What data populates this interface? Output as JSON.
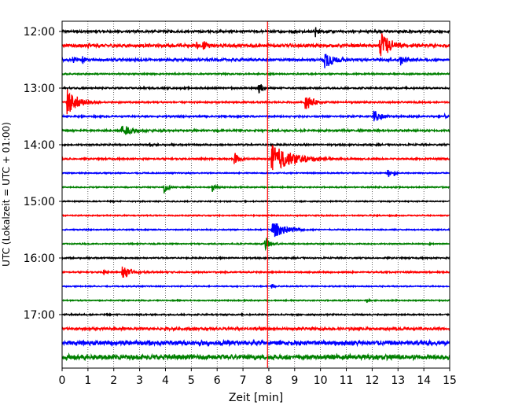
{
  "chart_data": {
    "type": "line",
    "subtype": "seismogram-helicorder",
    "xlabel": "Zeit  [min]",
    "ylabel": "UTC (Lokalzeit = UTC + 01:00)",
    "xlim": [
      0,
      15
    ],
    "x_ticks": [
      "0",
      "1",
      "2",
      "3",
      "4",
      "5",
      "6",
      "7",
      "8",
      "9",
      "10",
      "11",
      "12",
      "13",
      "14",
      "15"
    ],
    "y_tick_labels": [
      "12:00",
      "13:00",
      "14:00",
      "15:00",
      "16:00",
      "17:00"
    ],
    "y_tick_rows": [
      0,
      4,
      8,
      12,
      16,
      20
    ],
    "row_minutes": 15,
    "row_count": 24,
    "trace_colors": [
      "#000000",
      "#ff0000",
      "#0000ff",
      "#008000"
    ],
    "vertical_grid": "dotted",
    "marker_line": {
      "x": 7.95,
      "color": "#ff0000"
    },
    "rows": [
      {
        "start": "12:00",
        "color": "#000000",
        "noise": 0.2,
        "events": [
          [
            9.8,
            1.3,
            0.1
          ]
        ]
      },
      {
        "start": "12:15",
        "color": "#ff0000",
        "noise": 0.28,
        "events": [
          [
            1.0,
            1.0,
            0.06
          ],
          [
            5.2,
            1.0,
            0.08
          ],
          [
            5.45,
            1.6,
            0.14
          ],
          [
            12.3,
            3.0,
            0.35
          ],
          [
            12.55,
            1.2,
            0.25
          ]
        ]
      },
      {
        "start": "12:30",
        "color": "#0000ff",
        "noise": 0.22,
        "events": [
          [
            0.4,
            0.9,
            0.18
          ],
          [
            0.8,
            1.1,
            0.08
          ],
          [
            10.15,
            2.2,
            0.35
          ],
          [
            13.1,
            1.4,
            0.2
          ]
        ]
      },
      {
        "start": "12:45",
        "color": "#008000",
        "noise": 0.12,
        "events": []
      },
      {
        "start": "13:00",
        "color": "#000000",
        "noise": 0.14,
        "events": [
          [
            7.6,
            1.6,
            0.15
          ]
        ]
      },
      {
        "start": "13:15",
        "color": "#ff0000",
        "noise": 0.14,
        "events": [
          [
            0.18,
            3.0,
            0.4
          ],
          [
            9.4,
            2.2,
            0.25
          ]
        ]
      },
      {
        "start": "13:30",
        "color": "#0000ff",
        "noise": 0.14,
        "events": [
          [
            12.05,
            1.6,
            0.25
          ],
          [
            14.8,
            0.6,
            0.06
          ]
        ]
      },
      {
        "start": "13:45",
        "color": "#008000",
        "noise": 0.16,
        "events": [
          [
            2.3,
            1.6,
            0.4
          ],
          [
            3.9,
            0.6,
            0.06
          ]
        ]
      },
      {
        "start": "14:00",
        "color": "#000000",
        "noise": 0.14,
        "events": [
          [
            3.4,
            0.7,
            0.06
          ]
        ]
      },
      {
        "start": "14:15",
        "color": "#ff0000",
        "noise": 0.14,
        "events": [
          [
            6.65,
            1.5,
            0.18
          ],
          [
            8.1,
            3.2,
            0.8
          ]
        ]
      },
      {
        "start": "14:30",
        "color": "#0000ff",
        "noise": 0.1,
        "events": [
          [
            12.6,
            1.2,
            0.08
          ],
          [
            12.85,
            1.0,
            0.06
          ]
        ]
      },
      {
        "start": "14:45",
        "color": "#008000",
        "noise": 0.1,
        "events": [
          [
            3.95,
            1.4,
            0.15
          ],
          [
            5.8,
            1.2,
            0.12
          ]
        ]
      },
      {
        "start": "15:00",
        "color": "#000000",
        "noise": 0.1,
        "events": []
      },
      {
        "start": "15:15",
        "color": "#ff0000",
        "noise": 0.1,
        "events": []
      },
      {
        "start": "15:30",
        "color": "#0000ff",
        "noise": 0.1,
        "events": [
          [
            8.1,
            2.0,
            0.5
          ]
        ]
      },
      {
        "start": "15:45",
        "color": "#008000",
        "noise": 0.1,
        "events": [
          [
            7.85,
            1.6,
            0.2
          ],
          [
            14.2,
            0.5,
            0.06
          ]
        ]
      },
      {
        "start": "16:00",
        "color": "#000000",
        "noise": 0.12,
        "events": []
      },
      {
        "start": "16:15",
        "color": "#ff0000",
        "noise": 0.12,
        "events": [
          [
            1.6,
            0.9,
            0.1
          ],
          [
            2.3,
            1.3,
            0.35
          ]
        ]
      },
      {
        "start": "16:30",
        "color": "#0000ff",
        "noise": 0.1,
        "events": [
          [
            8.1,
            0.8,
            0.1
          ]
        ]
      },
      {
        "start": "16:45",
        "color": "#008000",
        "noise": 0.1,
        "events": [
          [
            11.8,
            0.6,
            0.06
          ]
        ]
      },
      {
        "start": "17:00",
        "color": "#000000",
        "noise": 0.12,
        "events": []
      },
      {
        "start": "17:15",
        "color": "#ff0000",
        "noise": 0.22,
        "events": []
      },
      {
        "start": "17:30",
        "color": "#0000ff",
        "noise": 0.4,
        "events": []
      },
      {
        "start": "17:45",
        "color": "#008000",
        "noise": 0.45,
        "events": []
      }
    ]
  }
}
